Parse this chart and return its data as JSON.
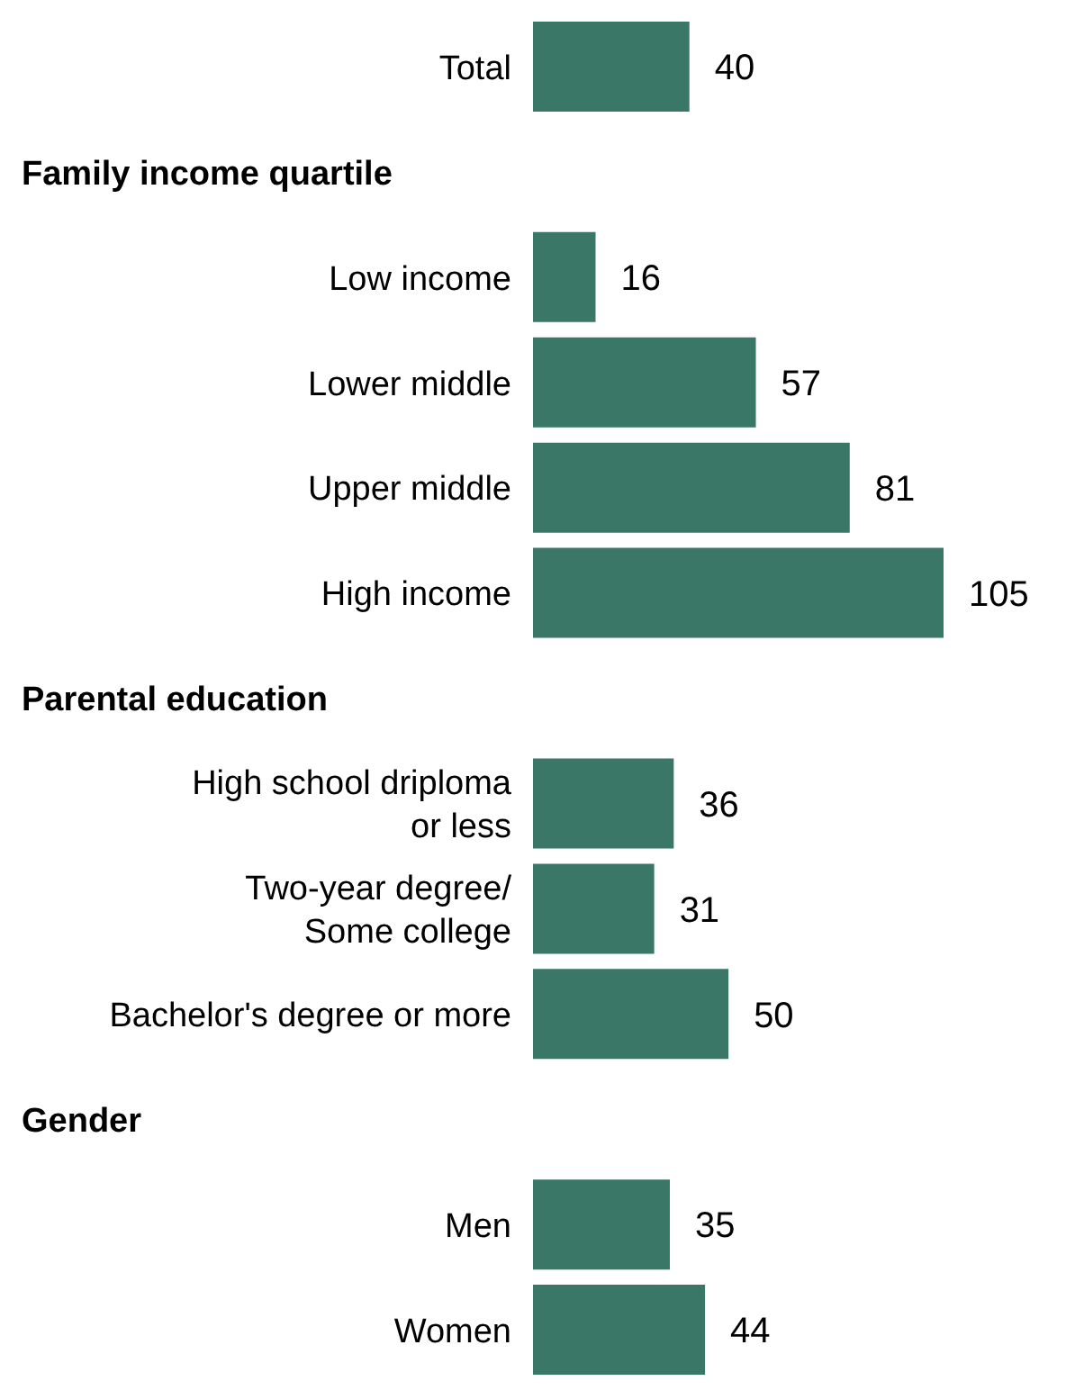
{
  "chart_data": {
    "type": "bar",
    "orientation": "horizontal",
    "categories": [
      "Total",
      null,
      "Low income",
      "Lower middle",
      "Upper middle",
      "High income",
      null,
      "High school driploma\nor less",
      "Two-year degree/\nSome college",
      "Bachelor's degree or more",
      null,
      "Men",
      "Women"
    ],
    "annotations": [
      "Family income quartile",
      "Parental education",
      "Gender"
    ],
    "values": [
      40,
      null,
      16,
      57,
      81,
      105,
      null,
      36,
      31,
      50,
      null,
      35,
      44
    ],
    "color": "#3a7766",
    "data_labels": true,
    "grid": false,
    "legend": false
  }
}
